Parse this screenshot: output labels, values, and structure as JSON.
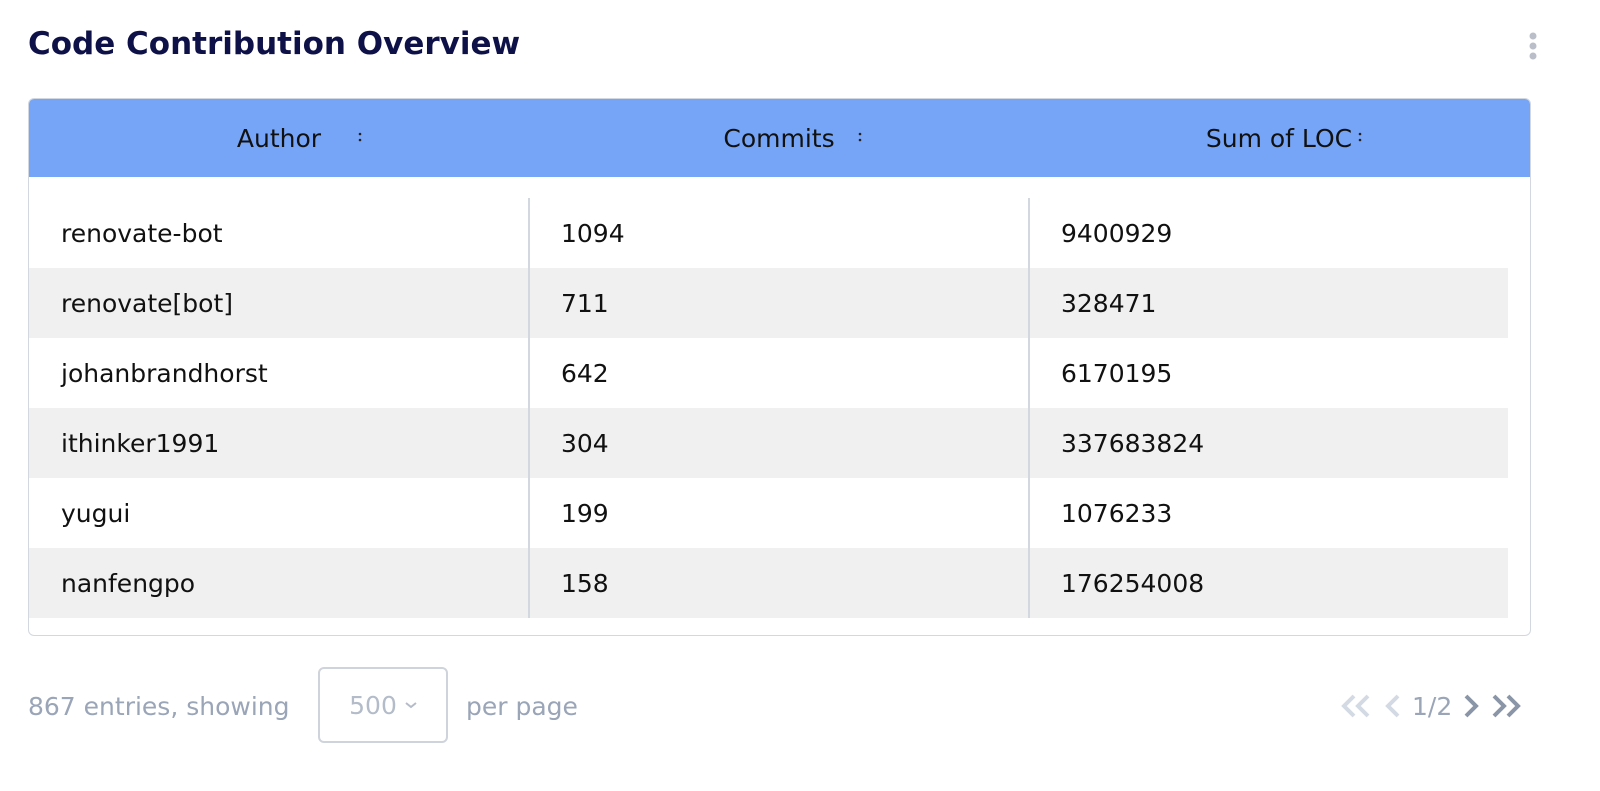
{
  "header": {
    "title": "Code Contribution Overview"
  },
  "table": {
    "columns": [
      "Author",
      "Commits",
      "Sum of LOC"
    ],
    "rows": [
      [
        "renovate-bot",
        1094,
        9400929
      ],
      [
        "renovate[bot]",
        711,
        328471
      ],
      [
        "johanbrandhorst",
        642,
        6170195
      ],
      [
        "ithinker1991",
        304,
        337683824
      ],
      [
        "yugui",
        199,
        1076233
      ],
      [
        "nanfengpo",
        158,
        176254008
      ]
    ]
  },
  "footer": {
    "entries_text": "867 entries, showing",
    "page_size": "500",
    "per_page_text": "per page",
    "page_indicator": "1/2"
  }
}
